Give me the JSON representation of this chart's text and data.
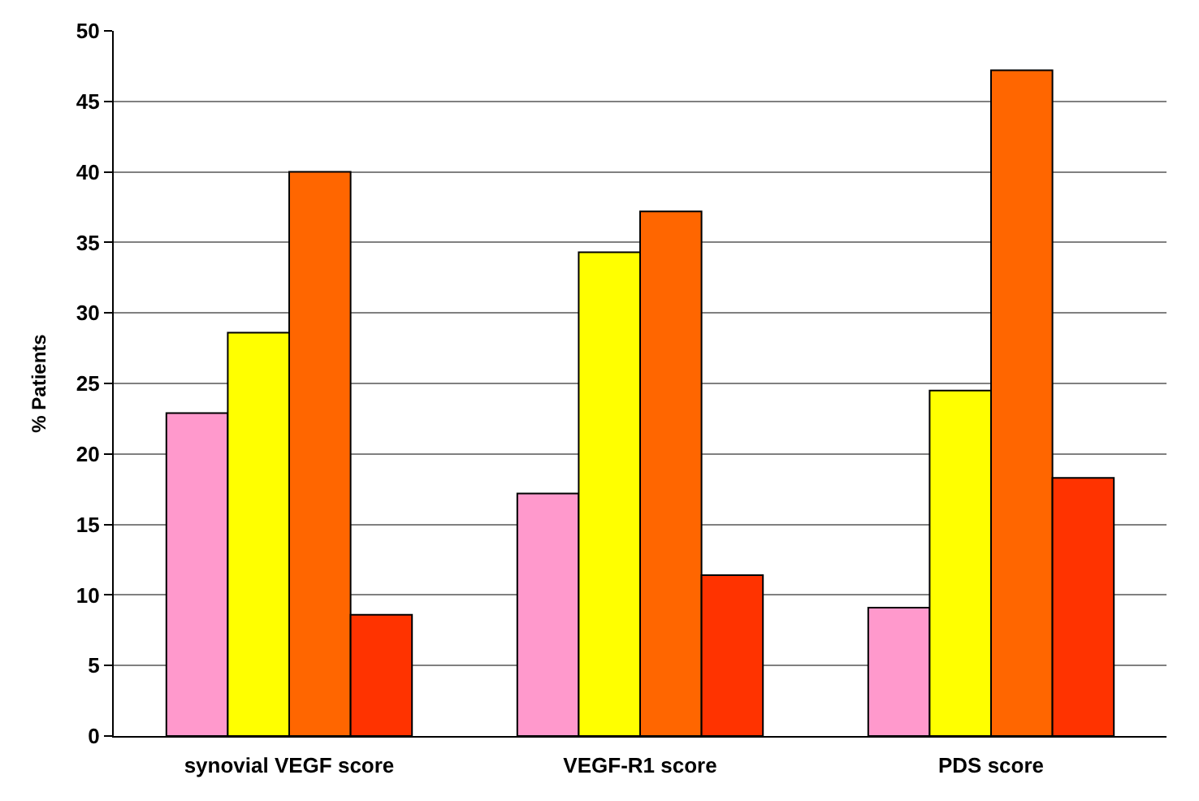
{
  "chart_data": {
    "type": "bar",
    "ylabel": "% Patients",
    "categories": [
      "synovial VEGF score",
      "VEGF-R1 score",
      "PDS score"
    ],
    "series": [
      {
        "color": "#ff99cc",
        "values": [
          22.9,
          17.2,
          9.1
        ]
      },
      {
        "color": "#ffff00",
        "values": [
          28.6,
          34.3,
          24.5
        ]
      },
      {
        "color": "#ff6600",
        "values": [
          40.0,
          37.2,
          47.2
        ]
      },
      {
        "color": "#ff3300",
        "values": [
          8.6,
          11.4,
          18.3
        ]
      }
    ],
    "ylim": [
      0,
      50
    ],
    "yticks": [
      0,
      5,
      10,
      15,
      20,
      25,
      30,
      35,
      40,
      45,
      50
    ],
    "grid": "y"
  }
}
